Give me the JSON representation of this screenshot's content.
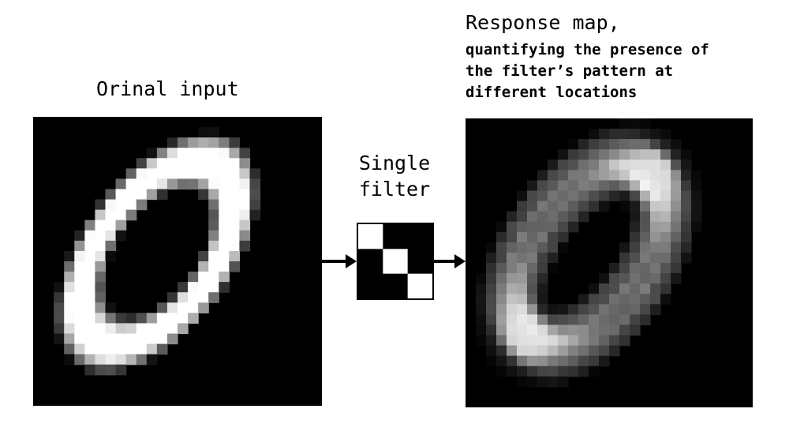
{
  "input_panel": {
    "title": "Orinal input"
  },
  "filter_panel": {
    "title_lines": [
      "Single",
      "filter"
    ],
    "kernel": [
      [
        1,
        0,
        0
      ],
      [
        0,
        1,
        0
      ],
      [
        0,
        0,
        1
      ]
    ]
  },
  "response_panel": {
    "title": "Response map,",
    "subtitle_lines": [
      "quantifying the presence of",
      "the filter’s pattern at",
      "different locations"
    ]
  },
  "colors": {
    "background": "#ffffff",
    "image_bg": "#000000",
    "ink": "#000000"
  },
  "icons": {
    "arrow_left": "arrow-right-icon",
    "arrow_right": "arrow-right-icon"
  }
}
